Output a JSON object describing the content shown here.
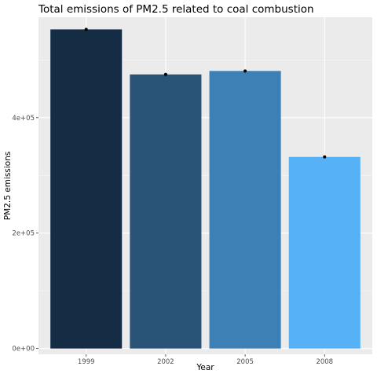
{
  "chart_data": {
    "type": "bar",
    "title": "Total emissions of PM2.5 related to coal combustion",
    "xlabel": "Year",
    "ylabel": "PM2.5 emissions",
    "categories": [
      "1999",
      "2002",
      "2005",
      "2008"
    ],
    "values": [
      553000,
      475000,
      481000,
      332000
    ],
    "bar_colors": [
      "#152c45",
      "#295478",
      "#3d80b6",
      "#56b1f7"
    ],
    "ylim": [
      -10000,
      574000
    ],
    "yticks": [
      0,
      200000,
      400000
    ],
    "ytick_labels": [
      "0e+00",
      "2e+05",
      "4e+05"
    ],
    "panel_background": "#ebebeb",
    "grid": true,
    "point_markers": true,
    "legend": "none"
  }
}
